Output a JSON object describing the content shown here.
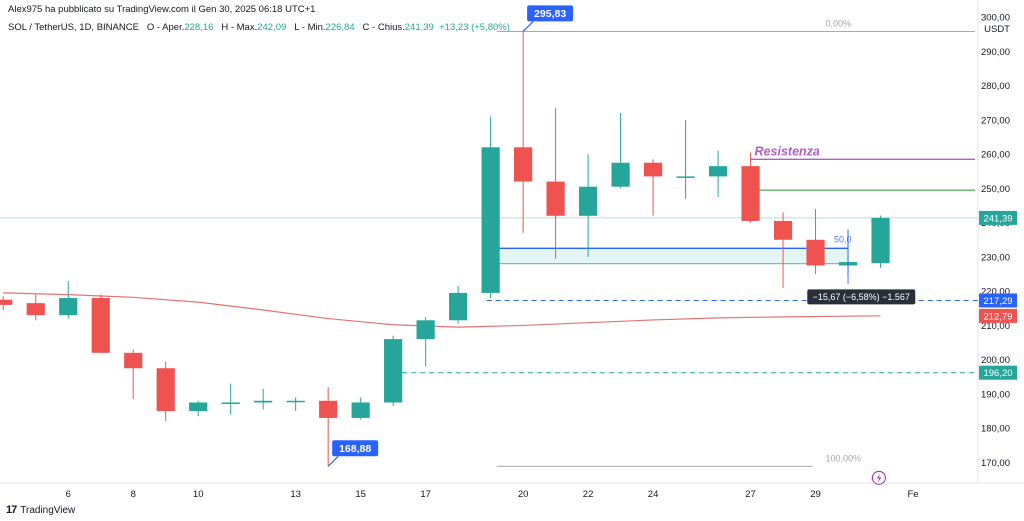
{
  "published_by": "Alex975 ha pubblicato su TradingView.com il Gen 30, 2025 06:18 UTC+1",
  "ohlc_bar": {
    "symbol": "SOL / TetherUS, 1D, BINANCE",
    "open_label": "O - Aper.",
    "open_value": "228,16",
    "high_label": "H - Max.",
    "high_value": "242,09",
    "low_label": "L - Min.",
    "low_value": "226,84",
    "close_label": "C - Chius.",
    "close_value": "241,39",
    "change_value": "+13,23 (+5,80%)"
  },
  "brand": {
    "logo": "17",
    "name": "TradingView"
  },
  "colors": {
    "up": "#26a69a",
    "down": "#ef5350",
    "ma": "#e57373",
    "resistance": "#b05ec3",
    "blue": "#2962ff",
    "green_line": "#4caf50"
  },
  "chart_data": {
    "type": "candlestick",
    "currency": "USDT",
    "y_ticks": [
      170,
      180,
      190,
      200,
      210,
      220,
      230,
      240,
      250,
      260,
      270,
      280,
      290,
      300
    ],
    "y_tick_labels": [
      "170,00",
      "180,00",
      "190,00",
      "200,00",
      "210,00",
      "220,00",
      "230,00",
      "240,00",
      "250,00",
      "260,00",
      "270,00",
      "280,00",
      "290,00",
      "300,00"
    ],
    "ylim": [
      164,
      305
    ],
    "xlim": [
      3.9,
      34.0
    ],
    "x_ticks": [
      6,
      8,
      10,
      13,
      15,
      17,
      20,
      22,
      24,
      27,
      29,
      32
    ],
    "x_tick_labels": [
      "6",
      "8",
      "10",
      "13",
      "15",
      "17",
      "20",
      "22",
      "24",
      "27",
      "29",
      "Fe"
    ],
    "candles": [
      {
        "x": 4,
        "o": 217.5,
        "h": 218.5,
        "l": 214.5,
        "c": 216.0
      },
      {
        "x": 5,
        "o": 216.5,
        "h": 219.0,
        "l": 211.5,
        "c": 213.0
      },
      {
        "x": 6,
        "o": 213.0,
        "h": 223.0,
        "l": 212.0,
        "c": 218.0
      },
      {
        "x": 7,
        "o": 218.0,
        "h": 219.0,
        "l": 202.0,
        "c": 202.0
      },
      {
        "x": 8,
        "o": 202.0,
        "h": 203.0,
        "l": 188.5,
        "c": 197.5
      },
      {
        "x": 9,
        "o": 197.5,
        "h": 199.5,
        "l": 182.0,
        "c": 185.0
      },
      {
        "x": 10,
        "o": 185.0,
        "h": 188.0,
        "l": 183.5,
        "c": 187.5
      },
      {
        "x": 11,
        "o": 187.5,
        "h": 193.0,
        "l": 184.0,
        "c": 187.5
      },
      {
        "x": 12,
        "o": 187.5,
        "h": 191.5,
        "l": 185.5,
        "c": 188.0
      },
      {
        "x": 13,
        "o": 188.0,
        "h": 189.0,
        "l": 185.0,
        "c": 188.0
      },
      {
        "x": 14,
        "o": 188.0,
        "h": 192.0,
        "l": 168.88,
        "c": 183.0
      },
      {
        "x": 15,
        "o": 183.0,
        "h": 189.0,
        "l": 182.5,
        "c": 187.5
      },
      {
        "x": 16,
        "o": 187.5,
        "h": 207.0,
        "l": 186.5,
        "c": 206.0
      },
      {
        "x": 17,
        "o": 206.0,
        "h": 212.5,
        "l": 198.0,
        "c": 211.5
      },
      {
        "x": 18,
        "o": 211.5,
        "h": 221.5,
        "l": 210.5,
        "c": 219.5
      },
      {
        "x": 19,
        "o": 219.5,
        "h": 271.0,
        "l": 218.0,
        "c": 262.0
      },
      {
        "x": 20,
        "o": 262.0,
        "h": 295.83,
        "l": 237.0,
        "c": 252.0
      },
      {
        "x": 21,
        "o": 252.0,
        "h": 273.5,
        "l": 229.5,
        "c": 242.0
      },
      {
        "x": 22,
        "o": 242.0,
        "h": 260.0,
        "l": 230.0,
        "c": 250.5
      },
      {
        "x": 23,
        "o": 250.5,
        "h": 272.0,
        "l": 250.0,
        "c": 257.5
      },
      {
        "x": 24,
        "o": 257.5,
        "h": 258.5,
        "l": 242.0,
        "c": 253.5
      },
      {
        "x": 25,
        "o": 253.5,
        "h": 270.0,
        "l": 247.0,
        "c": 253.5
      },
      {
        "x": 26,
        "o": 253.5,
        "h": 261.0,
        "l": 247.5,
        "c": 256.5
      },
      {
        "x": 27,
        "o": 256.5,
        "h": 260.5,
        "l": 240.0,
        "c": 240.5
      },
      {
        "x": 28,
        "o": 240.5,
        "h": 243.0,
        "l": 221.0,
        "c": 235.0
      },
      {
        "x": 29,
        "o": 235.0,
        "h": 244.0,
        "l": 225.0,
        "c": 227.5
      },
      {
        "x": 30,
        "o": 227.5,
        "h": 238.0,
        "l": 224.0,
        "c": 228.5
      },
      {
        "x": 31,
        "o": 228.16,
        "h": 242.09,
        "l": 226.84,
        "c": 241.39
      }
    ],
    "moving_average": [
      {
        "x": 4,
        "y": 219.5
      },
      {
        "x": 6,
        "y": 219.0
      },
      {
        "x": 8,
        "y": 218.2
      },
      {
        "x": 10,
        "y": 216.8
      },
      {
        "x": 12,
        "y": 214.5
      },
      {
        "x": 14,
        "y": 212.0
      },
      {
        "x": 16,
        "y": 210.2
      },
      {
        "x": 18,
        "y": 209.5
      },
      {
        "x": 20,
        "y": 210.0
      },
      {
        "x": 22,
        "y": 210.8
      },
      {
        "x": 24,
        "y": 211.6
      },
      {
        "x": 26,
        "y": 212.2
      },
      {
        "x": 28,
        "y": 212.5
      },
      {
        "x": 30,
        "y": 212.7
      },
      {
        "x": 31,
        "y": 212.8
      }
    ],
    "fib_levels": [
      {
        "label": "0,00%",
        "value": 295.83,
        "x_from": 19,
        "x_to": 34
      },
      {
        "label": "100,00%",
        "value": 168.88,
        "x_from": 19,
        "x_to": 29
      }
    ],
    "resistance": {
      "label": "Resistenza",
      "value": 258.5,
      "x_from": 27,
      "x_to": 34
    },
    "green_line": {
      "value": 249.5,
      "x_from": 27,
      "x_to": 34
    },
    "support_zone": {
      "top": 232.5,
      "bottom": 228.0,
      "x_from": 19,
      "x_to": 30,
      "mid_label": "50,0"
    },
    "dashed_blue": {
      "value": 217.29,
      "x_from": 19,
      "x_to": 34
    },
    "dashed_green": {
      "value": 196.2,
      "x_from": 16,
      "x_to": 34
    },
    "high_marker": {
      "label": "295,83",
      "x": 20,
      "value": 295.83
    },
    "low_marker": {
      "label": "168,88",
      "x": 14,
      "value": 168.88
    },
    "measure_box": {
      "label": "−15,67 (−6,58%) −1.567",
      "x": 30.5,
      "value": 218.2
    },
    "price_labels": [
      {
        "label": "241,39",
        "value": 241.39,
        "color": "#26a69a"
      },
      {
        "label": "217,29",
        "value": 217.29,
        "color": "#2962ff"
      },
      {
        "label": "212,79",
        "value": 212.79,
        "color": "#ef5350"
      },
      {
        "label": "196,20",
        "value": 196.2,
        "color": "#26a69a"
      }
    ]
  }
}
